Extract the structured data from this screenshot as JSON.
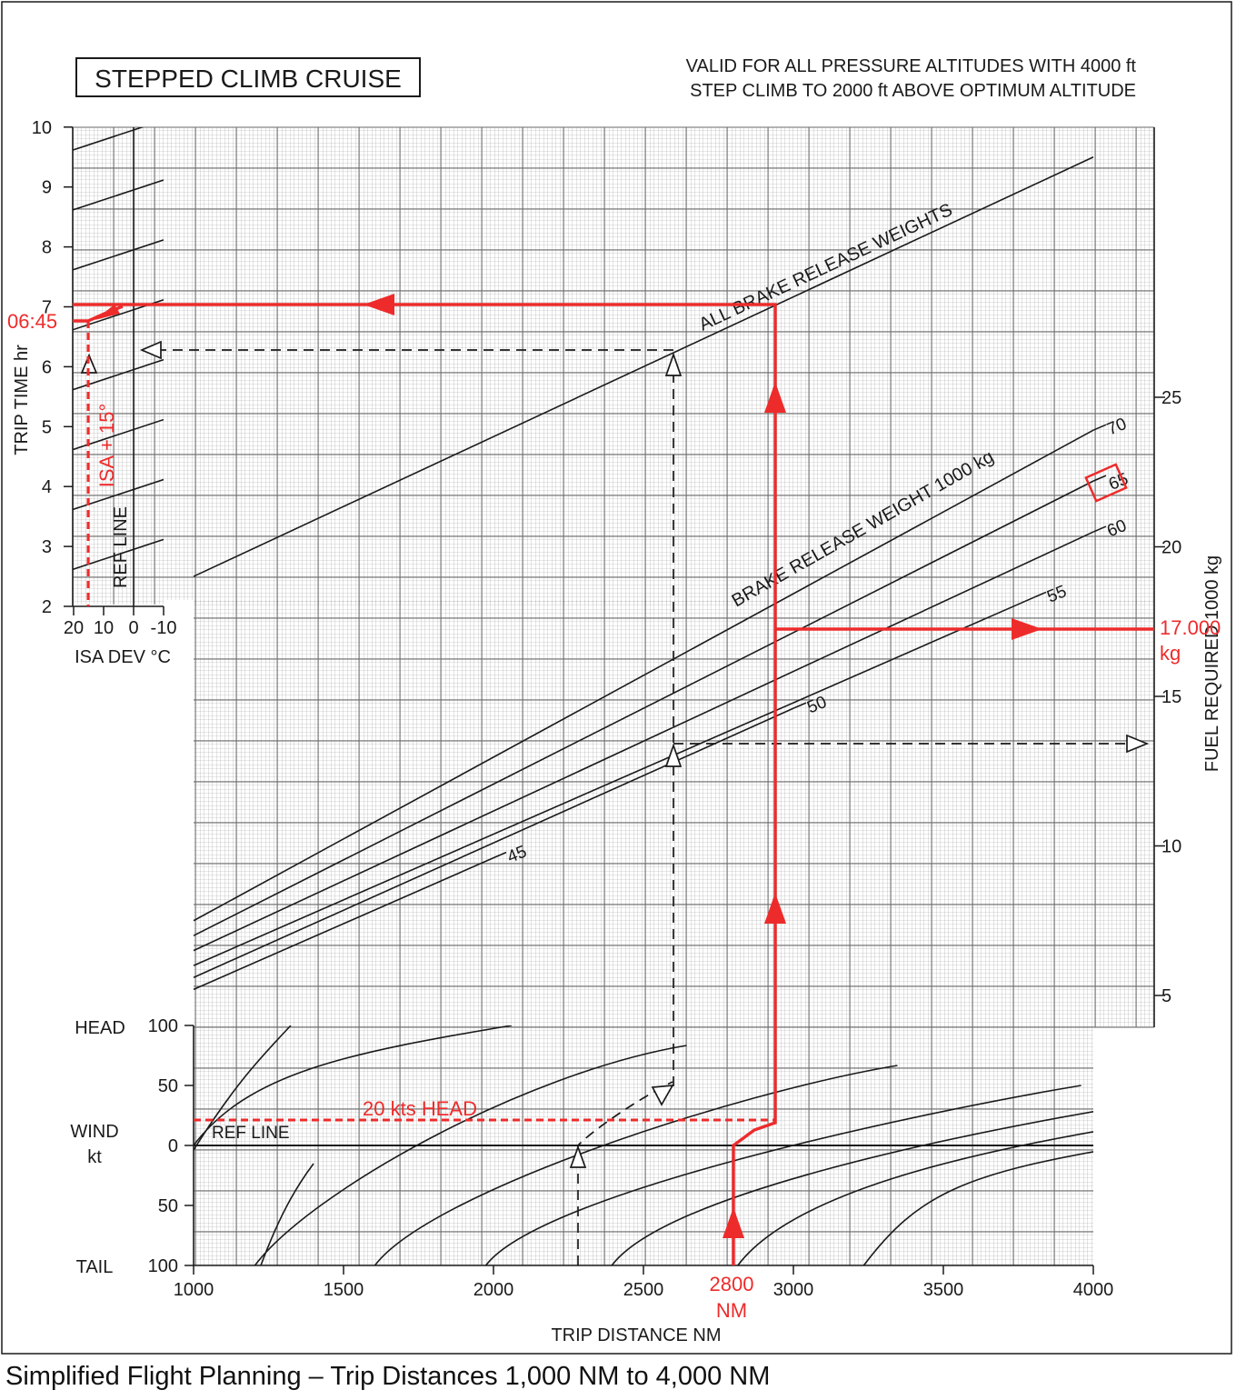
{
  "caption": "Simplified Flight Planning – Trip Distances 1,000 NM to 4,000 NM",
  "colors": {
    "ink": "#1a1a1a",
    "grid": "#9a9a9a",
    "annotation": "#ee2b2b"
  },
  "chart_data": {
    "type": "line",
    "title": "STEPPED CLIMB CRUISE",
    "notes": [
      "VALID FOR ALL PRESSURE ALTITUDES WITH 4000 ft",
      "STEP CLIMB TO 2000 ft ABOVE OPTIMUM ALTITUDE"
    ],
    "grid": true,
    "trip_time_panel": {
      "ylabel": "TRIP TIME  hr",
      "y_ticks": [
        2,
        3,
        4,
        5,
        6,
        7,
        8,
        9,
        10
      ],
      "xlabel": "ISA DEV °C",
      "x_ticks": [
        "20",
        "10",
        "0",
        "-10"
      ],
      "ref_line_label": "REF LINE",
      "correction_lines_at_ref": [
        2.95,
        3.95,
        4.95,
        5.95,
        6.95,
        7.95,
        8.95,
        9.95
      ]
    },
    "fuel_axis": {
      "label": "FUEL REQUIRED  1000 kg",
      "ticks": [
        5,
        10,
        15,
        20,
        25
      ]
    },
    "all_brake_release_weights": {
      "label": "ALL BRAKE RELEASE WEIGHTS",
      "points": [
        [
          1000,
          2.5
        ],
        [
          4000,
          9.5
        ]
      ]
    },
    "brake_release_weight_curves": {
      "label": "BRAKE RELEASE WEIGHT  1000 kg",
      "series": [
        {
          "name": "70",
          "points": [
            [
              1000,
              7.5
            ],
            [
              4000,
              23.9
            ]
          ]
        },
        {
          "name": "65",
          "points": [
            [
              1000,
              7.0
            ],
            [
              4000,
              22.2
            ]
          ]
        },
        {
          "name": "60",
          "points": [
            [
              1000,
              6.5
            ],
            [
              4000,
              20.5
            ]
          ]
        },
        {
          "name": "55",
          "points": [
            [
              1000,
              6.0
            ],
            [
              3800,
              18.3
            ]
          ]
        },
        {
          "name": "50",
          "points": [
            [
              1000,
              5.6
            ],
            [
              3000,
              14.6
            ]
          ]
        },
        {
          "name": "45",
          "points": [
            [
              1000,
              5.2
            ],
            [
              2000,
              9.6
            ]
          ]
        }
      ]
    },
    "wind_panel": {
      "ylabel": "WIND kt",
      "head_label": "HEAD",
      "tail_label": "TAIL",
      "wind_label_top": "WIND",
      "wind_label_unit": "kt",
      "y_ticks": [
        "100",
        "50",
        "0",
        "50",
        "100"
      ],
      "ref_line_label": "REF LINE",
      "xlabel": "TRIP DISTANCE  NM",
      "x_ticks": [
        1000,
        1500,
        2000,
        2500,
        3000,
        3500,
        4000
      ],
      "xlim": [
        1000,
        4000
      ],
      "ylim": [
        -100,
        100
      ]
    },
    "red_annotations": {
      "trip_distance": "2800",
      "trip_distance_unit": "NM",
      "wind": "20 kts HEAD",
      "brake_release_weight_marked": "65",
      "fuel": "17.000",
      "fuel_unit": "kg",
      "time": "06:45",
      "isa": "ISA + 15°"
    }
  }
}
